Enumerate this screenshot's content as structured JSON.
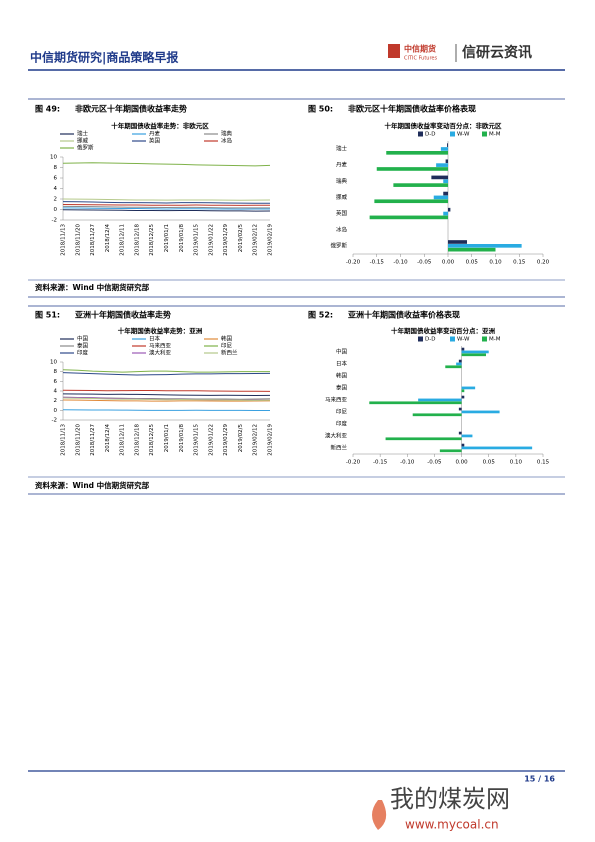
{
  "header": {
    "left": "中信期货研究|商品策略早报",
    "logo_cn": "中信期货",
    "logo_en": "CITIC Futures",
    "brand": "信研云资讯"
  },
  "figures": [
    {
      "label": "图 49:",
      "caption": "非欧元区十年期国债收益率走势"
    },
    {
      "label": "图 50:",
      "caption": "非欧元区十年期国债收益率价格表现"
    },
    {
      "label": "图 51:",
      "caption": "亚洲十年期国债收益率走势"
    },
    {
      "label": "图 52:",
      "caption": "亚洲十年期国债收益率价格表现"
    }
  ],
  "sources": [
    "资料来源：Wind 中信期货研究部",
    "资料来源：Wind 中信期货研究部"
  ],
  "footer": {
    "page": "15 / 16"
  },
  "watermark": {
    "name": "我的煤炭网",
    "url": "www.mycoal.cn"
  },
  "chart_data": [
    {
      "type": "line",
      "title": "十年期国债收益率走势：非欧元区",
      "categories": [
        "2018/11/13",
        "2018/11/20",
        "2018/11/27",
        "2018/12/4",
        "2018/12/11",
        "2018/12/18",
        "2018/12/25",
        "2019/01/1",
        "2019/01/8",
        "2019/01/15",
        "2019/01/22",
        "2019/01/29",
        "2019/02/5",
        "2019/02/12",
        "2019/02/19"
      ],
      "ylim": [
        -2,
        10
      ],
      "yticks": [
        -2,
        0,
        2,
        4,
        6,
        8,
        10
      ],
      "series": [
        {
          "name": "瑞士",
          "color": "#1f2d5a",
          "values": [
            -0.05,
            -0.08,
            -0.1,
            -0.12,
            -0.15,
            -0.18,
            -0.2,
            -0.22,
            -0.2,
            -0.2,
            -0.25,
            -0.27,
            -0.26,
            -0.3,
            -0.28
          ]
        },
        {
          "name": "丹麦",
          "color": "#3aa0e0",
          "values": [
            0.3,
            0.28,
            0.25,
            0.22,
            0.2,
            0.18,
            0.15,
            0.1,
            0.15,
            0.15,
            0.12,
            0.1,
            0.08,
            0.1,
            0.1
          ]
        },
        {
          "name": "瑞典",
          "color": "#8a8a8a",
          "values": [
            0.6,
            0.58,
            0.55,
            0.5,
            0.45,
            0.42,
            0.4,
            0.38,
            0.4,
            0.4,
            0.35,
            0.3,
            0.3,
            0.3,
            0.32
          ]
        },
        {
          "name": "挪威",
          "color": "#b5c98a",
          "values": [
            2.0,
            1.98,
            1.95,
            1.9,
            1.85,
            1.82,
            1.8,
            1.78,
            1.8,
            1.82,
            1.8,
            1.78,
            1.75,
            1.78,
            1.8
          ]
        },
        {
          "name": "英国",
          "color": "#2e4a8a",
          "values": [
            1.5,
            1.48,
            1.42,
            1.35,
            1.3,
            1.3,
            1.28,
            1.25,
            1.3,
            1.32,
            1.28,
            1.25,
            1.22,
            1.18,
            1.2
          ]
        },
        {
          "name": "冰岛",
          "color": "#c0392b",
          "values": [
            0.95,
            0.92,
            0.9,
            0.88,
            0.85,
            0.85,
            0.82,
            0.8,
            0.82,
            0.85,
            0.82,
            0.8,
            0.78,
            0.8,
            0.8
          ]
        },
        {
          "name": "俄罗斯",
          "color": "#7fb24a",
          "values": [
            8.8,
            8.85,
            8.9,
            8.85,
            8.8,
            8.75,
            8.7,
            8.65,
            8.6,
            8.5,
            8.45,
            8.4,
            8.35,
            8.3,
            8.4
          ]
        }
      ]
    },
    {
      "type": "hbar",
      "title": "十年期国债收益率变动百分点：非欧元区",
      "categories": [
        "瑞士",
        "丹麦",
        "瑞典",
        "挪威",
        "英国",
        "冰岛",
        "俄罗斯"
      ],
      "xlim": [
        -0.2,
        0.2
      ],
      "xticks": [
        {
          "value": -0.2,
          "label": "-0.20"
        },
        {
          "value": -0.15,
          "label": "-0.15"
        },
        {
          "value": -0.1,
          "label": "-0.10"
        },
        {
          "value": -0.05,
          "label": "-0.05"
        },
        {
          "value": 0,
          "label": "0.00"
        },
        {
          "value": 0.05,
          "label": "0.05"
        },
        {
          "value": 0.1,
          "label": "0.10"
        },
        {
          "value": 0.15,
          "label": "0.15"
        },
        {
          "value": 0.2,
          "label": "0.20"
        }
      ],
      "series": [
        {
          "name": "D-D",
          "color": "#1f2d5a",
          "values": [
            -0.002,
            -0.005,
            -0.035,
            -0.01,
            0.005,
            0,
            0.04
          ]
        },
        {
          "name": "W-W",
          "color": "#29abe2",
          "values": [
            -0.015,
            -0.025,
            -0.01,
            -0.03,
            -0.01,
            0,
            0.155
          ]
        },
        {
          "name": "M-M",
          "color": "#22b14c",
          "values": [
            -0.13,
            -0.15,
            -0.115,
            -0.155,
            -0.165,
            0,
            0.1
          ]
        }
      ]
    },
    {
      "type": "line",
      "title": "十年期国债收益率走势：亚洲",
      "categories": [
        "2018/11/13",
        "2018/11/20",
        "2018/11/27",
        "2018/12/4",
        "2018/12/11",
        "2018/12/18",
        "2018/12/25",
        "2019/01/1",
        "2019/01/8",
        "2019/01/15",
        "2019/01/22",
        "2019/01/29",
        "2019/02/5",
        "2019/02/12",
        "2019/02/19"
      ],
      "ylim": [
        -2,
        10
      ],
      "yticks": [
        -2,
        0,
        2,
        4,
        6,
        8,
        10
      ],
      "series": [
        {
          "name": "中国",
          "color": "#1f2d5a",
          "values": [
            3.4,
            3.38,
            3.35,
            3.3,
            3.32,
            3.3,
            3.25,
            3.2,
            3.15,
            3.12,
            3.1,
            3.12,
            3.1,
            3.08,
            3.1
          ]
        },
        {
          "name": "日本",
          "color": "#3aa0e0",
          "values": [
            0.12,
            0.1,
            0.08,
            0.08,
            0.05,
            0.03,
            0.0,
            0.0,
            0.0,
            0.02,
            0.0,
            -0.01,
            -0.02,
            -0.03,
            -0.03
          ]
        },
        {
          "name": "韩国",
          "color": "#e08a3a",
          "values": [
            2.15,
            2.1,
            2.05,
            2.0,
            1.95,
            1.95,
            1.9,
            1.9,
            1.95,
            1.95,
            1.92,
            1.9,
            1.9,
            1.92,
            1.95
          ]
        },
        {
          "name": "泰国",
          "color": "#8a8a8a",
          "values": [
            2.7,
            2.65,
            2.6,
            2.55,
            2.5,
            2.45,
            2.45,
            2.4,
            2.4,
            2.35,
            2.35,
            2.35,
            2.3,
            2.35,
            2.4
          ]
        },
        {
          "name": "马来西亚",
          "color": "#c0392b",
          "values": [
            4.15,
            4.12,
            4.1,
            4.05,
            4.08,
            4.1,
            4.1,
            4.05,
            4.05,
            4.05,
            4.0,
            3.98,
            3.95,
            3.95,
            3.92
          ]
        },
        {
          "name": "印尼",
          "color": "#7fb24a",
          "values": [
            8.4,
            8.3,
            8.1,
            8.0,
            7.9,
            8.0,
            8.1,
            8.1,
            8.0,
            7.9,
            7.9,
            7.95,
            8.0,
            8.0,
            8.0
          ]
        },
        {
          "name": "印度",
          "color": "#2e4a8a",
          "values": [
            7.8,
            7.7,
            7.6,
            7.5,
            7.4,
            7.3,
            7.35,
            7.4,
            7.5,
            7.55,
            7.55,
            7.6,
            7.6,
            7.62,
            7.65
          ]
        },
        {
          "name": "澳大利亚",
          "color": "#9b59b6",
          "values": [
            2.7,
            2.65,
            2.6,
            2.5,
            2.4,
            2.35,
            2.3,
            2.25,
            2.3,
            2.25,
            2.2,
            2.2,
            2.15,
            2.1,
            2.15
          ]
        },
        {
          "name": "新西兰",
          "color": "#b5c98a",
          "values": [
            2.55,
            2.5,
            2.45,
            2.35,
            2.3,
            2.3,
            2.25,
            2.2,
            2.25,
            2.2,
            2.2,
            2.15,
            2.1,
            2.05,
            2.1
          ]
        }
      ]
    },
    {
      "type": "hbar",
      "title": "十年期国债收益率变动百分点：亚洲",
      "categories": [
        "中国",
        "日本",
        "韩国",
        "泰国",
        "马来西亚",
        "印尼",
        "印度",
        "澳大利亚",
        "新西兰"
      ],
      "xlim": [
        -0.2,
        0.15
      ],
      "xticks": [
        {
          "value": -0.2,
          "label": "-0.20"
        },
        {
          "value": -0.15,
          "label": "-0.15"
        },
        {
          "value": -0.1,
          "label": "-0.10"
        },
        {
          "value": -0.05,
          "label": "-0.05"
        },
        {
          "value": 0,
          "label": "0.00"
        },
        {
          "value": 0.05,
          "label": "0.05"
        },
        {
          "value": 0.1,
          "label": "0.10"
        },
        {
          "value": 0.15,
          "label": "0.15"
        }
      ],
      "series": [
        {
          "name": "D-D",
          "color": "#1f2d5a",
          "values": [
            0.005,
            -0.005,
            0,
            0,
            0.005,
            -0.005,
            0,
            -0.005,
            0.005
          ]
        },
        {
          "name": "W-W",
          "color": "#29abe2",
          "values": [
            0.05,
            -0.01,
            0,
            0.025,
            -0.08,
            0.07,
            0,
            0.02,
            0.13
          ]
        },
        {
          "name": "M-M",
          "color": "#22b14c",
          "values": [
            0.045,
            -0.03,
            0,
            0.005,
            -0.17,
            -0.09,
            0,
            -0.14,
            -0.04
          ]
        }
      ]
    }
  ]
}
